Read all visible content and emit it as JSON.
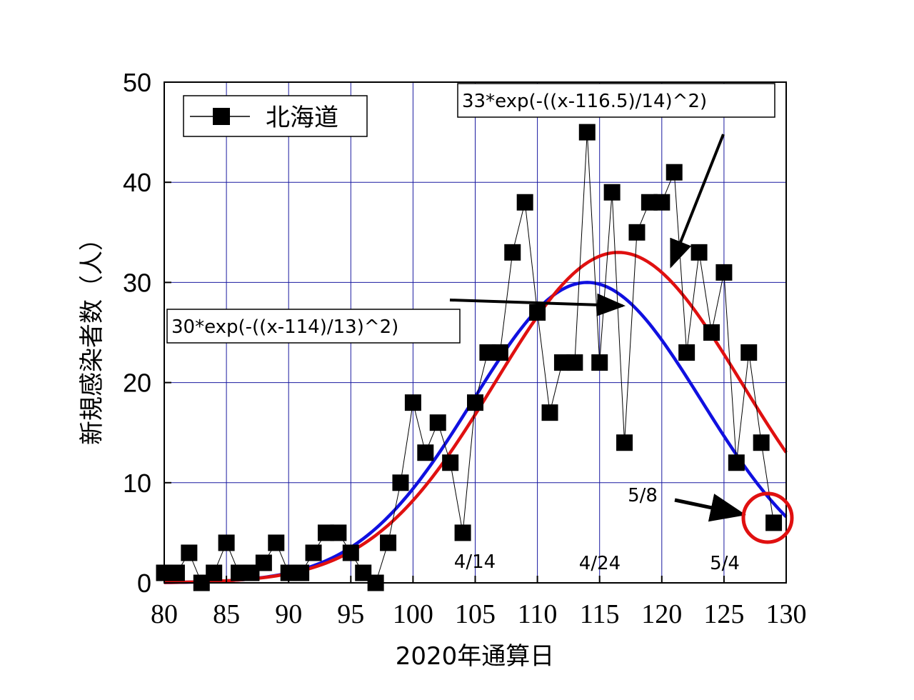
{
  "chart_data": {
    "type": "scatter",
    "xlabel": "2020年通算日",
    "ylabel": "新規感染者数（人）",
    "xlim": [
      80,
      130
    ],
    "ylim": [
      0,
      50
    ],
    "x_ticks": [
      "80",
      "85",
      "90",
      "95",
      "100",
      "105",
      "110",
      "115",
      "120",
      "125",
      "130"
    ],
    "y_ticks": [
      "0",
      "10",
      "20",
      "30",
      "40",
      "50"
    ],
    "grid": true,
    "legend": {
      "placement": "top-left",
      "label": "北海道"
    },
    "series": [
      {
        "name": "北海道",
        "marker": "square",
        "x": [
          80,
          81,
          82,
          83,
          84,
          85,
          86,
          87,
          88,
          89,
          90,
          91,
          92,
          93,
          94,
          95,
          96,
          97,
          98,
          99,
          100,
          101,
          102,
          103,
          104,
          105,
          106,
          107,
          108,
          109,
          110,
          111,
          112,
          113,
          114,
          115,
          116,
          117,
          118,
          119,
          120,
          121,
          122,
          123,
          124,
          125,
          126,
          127,
          128,
          129
        ],
        "y": [
          1,
          1,
          3,
          0,
          1,
          4,
          1,
          1,
          2,
          4,
          1,
          1,
          3,
          5,
          5,
          3,
          1,
          0,
          4,
          10,
          18,
          13,
          16,
          12,
          5,
          18,
          23,
          23,
          33,
          38,
          27,
          17,
          22,
          22,
          45,
          22,
          39,
          14,
          35,
          38,
          38,
          41,
          23,
          33,
          25,
          31,
          12,
          23,
          14,
          6
        ]
      }
    ],
    "fits": [
      {
        "label": "30*exp(-((x-114)/13)^2)",
        "a": 30,
        "mu": 114,
        "sigma": 13,
        "color": "#1010e0"
      },
      {
        "label": "33*exp(-((x-116.5)/14)^2)",
        "a": 33,
        "mu": 116.5,
        "sigma": 14,
        "color": "#e01010"
      }
    ],
    "annotations": [
      "4/14",
      "4/24",
      "5/4",
      "5/8"
    ]
  }
}
